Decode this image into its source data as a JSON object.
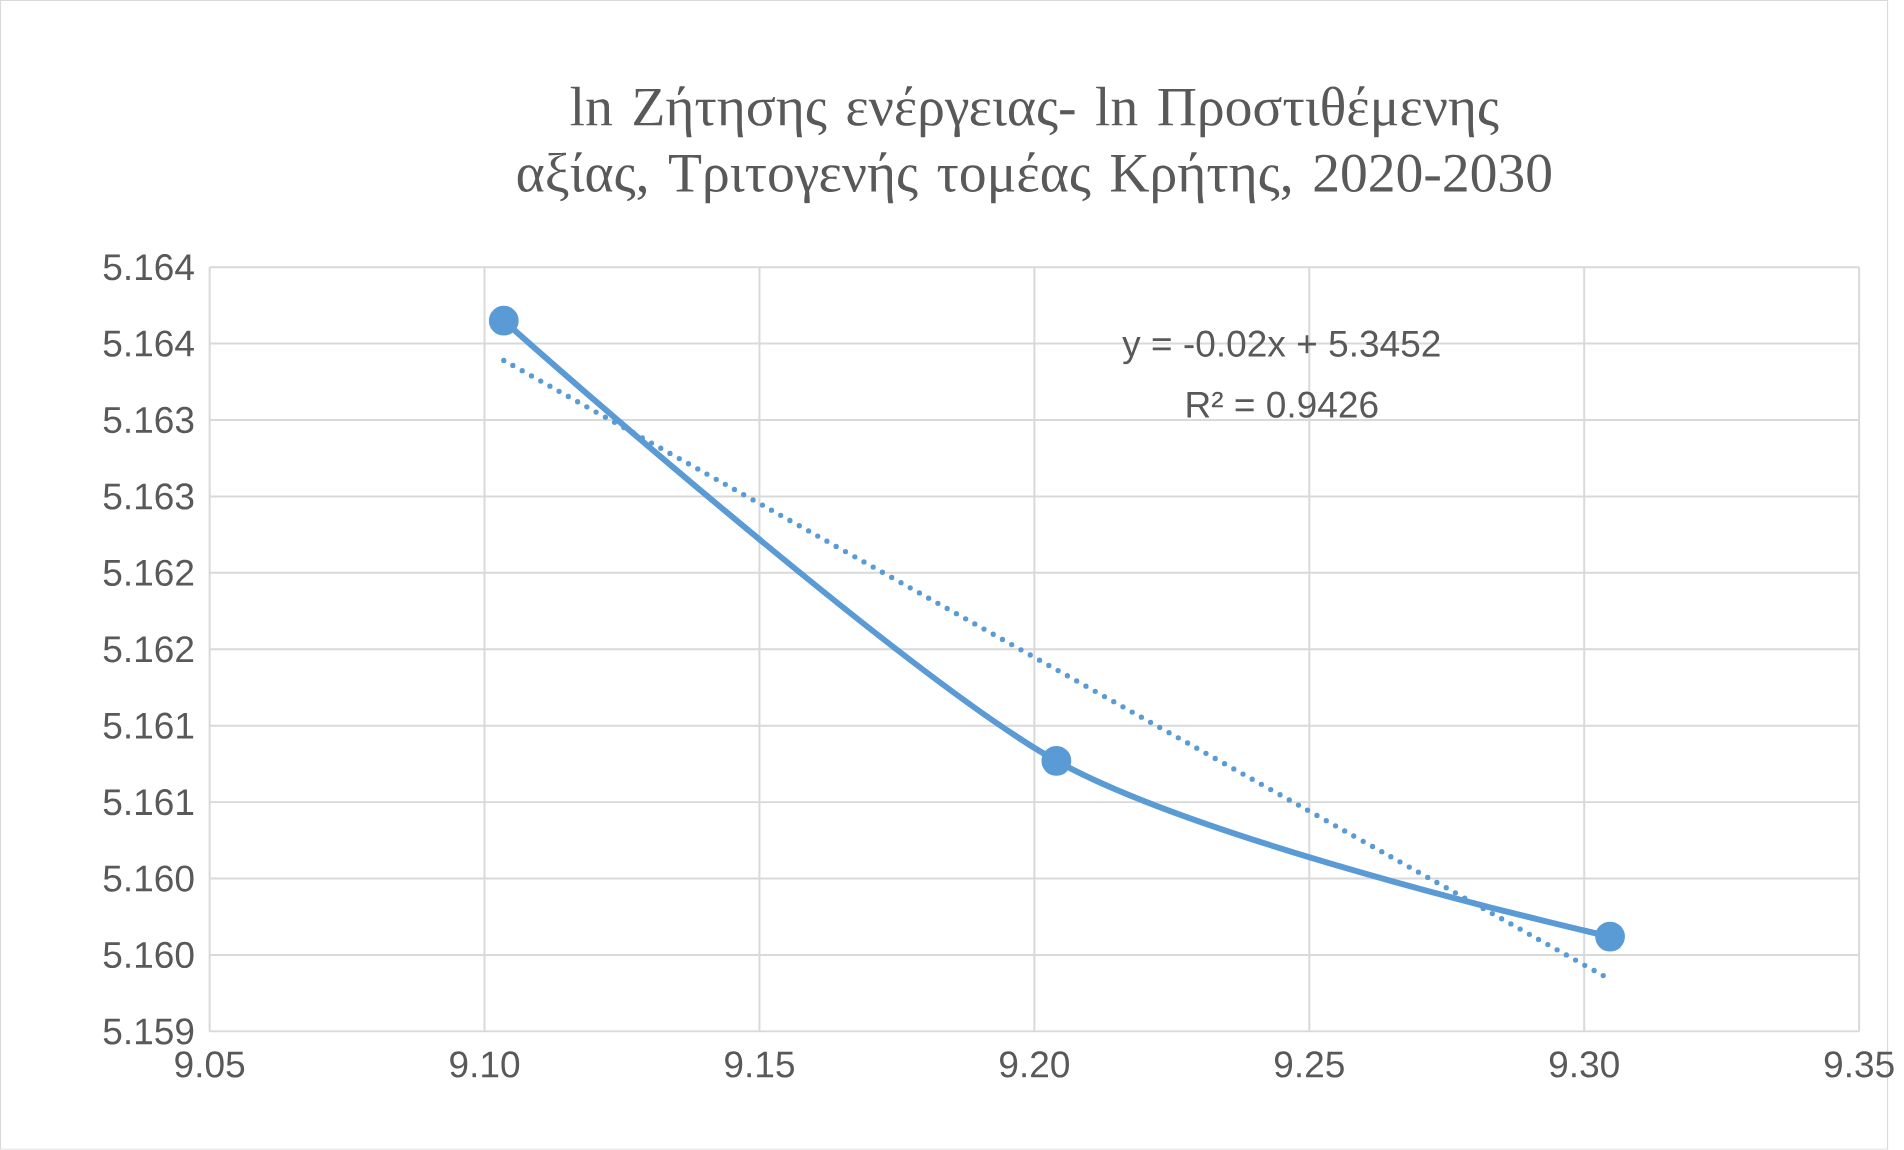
{
  "chart_data": {
    "type": "line",
    "title": "ln Ζήτησης ενέργειας- ln Προστιθέμενης αξίας, Τριτογενής τομέας Κρήτης, 2020-2030",
    "x": [
      9.1035,
      9.204,
      9.3047
    ],
    "series": [
      {
        "color": "#5b9bd5",
        "marker": "circle",
        "line_style": "solid",
        "values": [
          5.16365,
          5.16077,
          5.15962
        ]
      },
      {
        "color": "#5b9bd5",
        "marker": "none",
        "line_style": "dotted",
        "x": [
          9.1035,
          9.3047
        ],
        "values": [
          5.16339,
          5.15934
        ]
      }
    ],
    "xlim": [
      9.05,
      9.35
    ],
    "xticks": [
      {
        "value": 9.05,
        "label": "9.05"
      },
      {
        "value": 9.1,
        "label": "9.10"
      },
      {
        "value": 9.15,
        "label": "9.15"
      },
      {
        "value": 9.2,
        "label": "9.20"
      },
      {
        "value": 9.25,
        "label": "9.25"
      },
      {
        "value": 9.3,
        "label": "9.30"
      },
      {
        "value": 9.35,
        "label": "9.35"
      }
    ],
    "ylim": [
      5.159,
      5.164
    ],
    "yticks": [
      {
        "value": 5.159,
        "label": "5.159"
      },
      {
        "value": 5.1595,
        "label": "5.160"
      },
      {
        "value": 5.16,
        "label": "5.160"
      },
      {
        "value": 5.1605,
        "label": "5.161"
      },
      {
        "value": 5.161,
        "label": "5.161"
      },
      {
        "value": 5.1615,
        "label": "5.162"
      },
      {
        "value": 5.162,
        "label": "5.162"
      },
      {
        "value": 5.1625,
        "label": "5.163"
      },
      {
        "value": 5.163,
        "label": "5.163"
      },
      {
        "value": 5.1635,
        "label": "5.164"
      },
      {
        "value": 5.164,
        "label": "5.164"
      }
    ],
    "grid": true,
    "annotations": [
      "y = -0.02x + 5.3452",
      "R² = 0.9426"
    ]
  }
}
